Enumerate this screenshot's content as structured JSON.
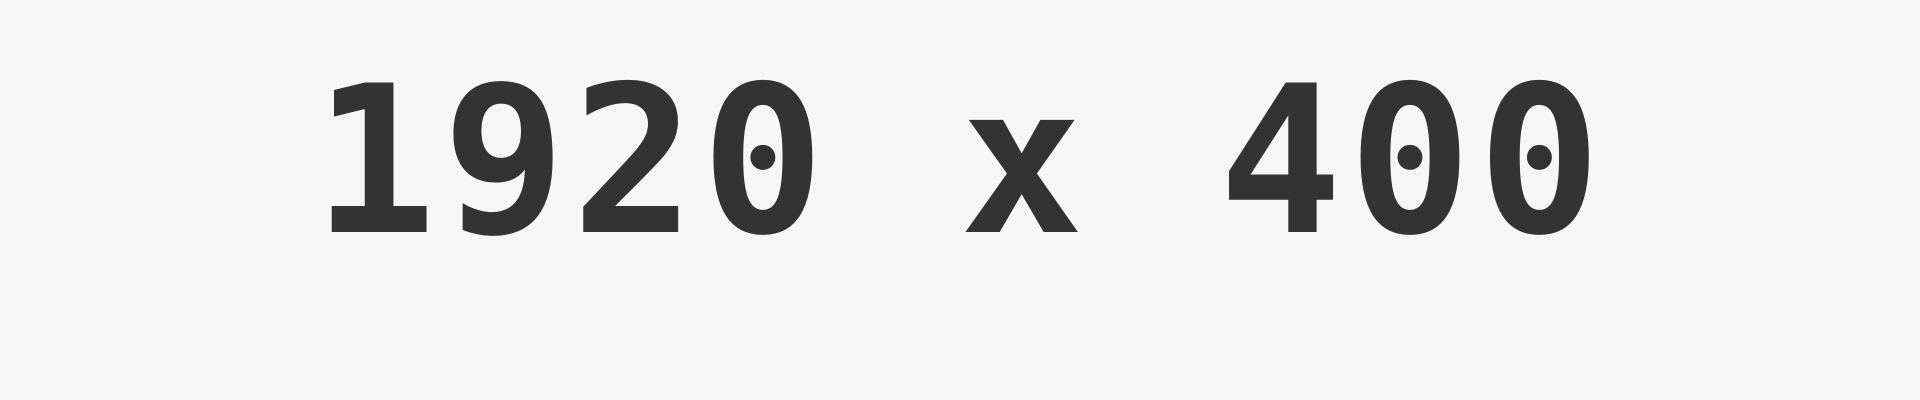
{
  "placeholder": {
    "text": "1920 x 400",
    "background_color": "#f6f6f6",
    "text_color": "#333333"
  }
}
